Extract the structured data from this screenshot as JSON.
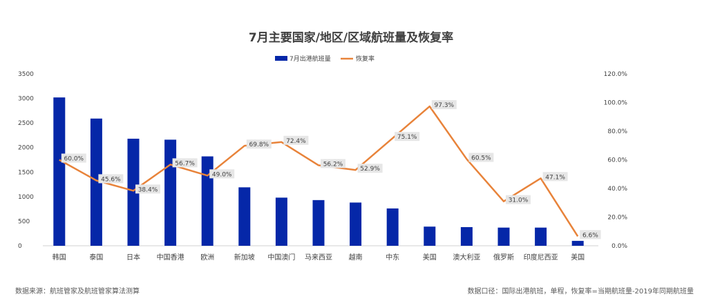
{
  "chart_data": {
    "type": "bar+line",
    "title": "7月主要国家/地区/区域航班量及恢复率",
    "categories": [
      "韩国",
      "泰国",
      "日本",
      "中国香港",
      "欧洲",
      "新加坡",
      "中国澳门",
      "马来西亚",
      "越南",
      "中东",
      "美国",
      "澳大利亚",
      "俄罗斯",
      "印度尼西亚",
      "美国"
    ],
    "series": [
      {
        "name": "7月出港航班量",
        "type": "bar",
        "axis": "left",
        "color": "#0527a8",
        "values": [
          3020,
          2590,
          2180,
          2160,
          1820,
          1190,
          980,
          930,
          880,
          760,
          390,
          380,
          370,
          370,
          100
        ]
      },
      {
        "name": "恢复率",
        "type": "line",
        "axis": "right",
        "color": "#e8833a",
        "values": [
          60.0,
          45.6,
          38.4,
          56.7,
          49.0,
          69.8,
          72.4,
          56.2,
          52.9,
          75.1,
          97.3,
          60.5,
          31.0,
          47.1,
          6.6
        ],
        "labels": [
          "60.0%",
          "45.6%",
          "38.4%",
          "56.7%",
          "49.0%",
          "69.8%",
          "72.4%",
          "56.2%",
          "52.9%",
          "75.1%",
          "97.3%",
          "60.5%",
          "31.0%",
          "47.1%",
          "6.6%"
        ]
      }
    ],
    "y_left": {
      "range": [
        0,
        3500
      ],
      "ticks": [
        0,
        500,
        1000,
        1500,
        2000,
        2500,
        3000,
        3500
      ],
      "tick_labels": [
        "0",
        "500",
        "1000",
        "1500",
        "2000",
        "2500",
        "3000",
        "3500"
      ]
    },
    "y_right": {
      "range": [
        0,
        120
      ],
      "ticks": [
        0,
        20,
        40,
        60,
        80,
        100,
        120
      ],
      "tick_labels": [
        "0.0%",
        "20.0%",
        "40.0%",
        "60.0%",
        "80.0%",
        "100.0%",
        "120.0%"
      ]
    },
    "legend_position": "top-center",
    "grid": false
  },
  "footer": {
    "source": "数据来源：航班管家及航班管家算法测算",
    "caliber": "数据口径：国际出港航班，单程，恢复率=当期航班量-2019年同期航班量"
  }
}
